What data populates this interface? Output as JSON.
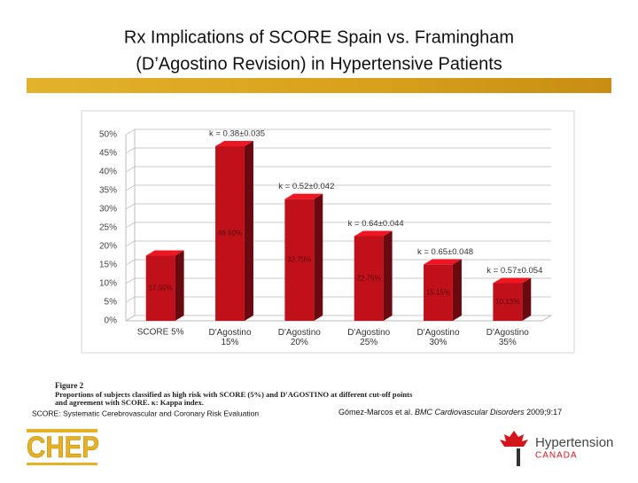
{
  "slide_title": [
    "Rx Implications of SCORE Spain vs. Framingham",
    "(D’Agostino Revision) in Hypertensive Patients"
  ],
  "chart_data": {
    "type": "bar",
    "categories": [
      "SCORE 5%",
      "D'Agostino 15%",
      "D'Agostino 20%",
      "D'Agostino 25%",
      "D'Agostino 30%",
      "D'Agostino 35%"
    ],
    "values": [
      17.5,
      46.9,
      32.7,
      22.75,
      15.15,
      10.13
    ],
    "value_labels": [
      "17.50%",
      "46.90%",
      "32.70%",
      "22.75%",
      "15.15%",
      "10.13%"
    ],
    "annotations": [
      "k = 0.38±0.035",
      "k = 0.52±0.042",
      "k = 0.64±0.044",
      "k = 0.65±0.048",
      "k = 0.57±0.054"
    ],
    "color": "#c0111b",
    "ylim": [
      0,
      50
    ],
    "yticks": [
      {
        "value": 0,
        "label": "0%"
      },
      {
        "value": 5,
        "label": "5%"
      },
      {
        "value": 10,
        "label": "10%"
      },
      {
        "value": 15,
        "label": "15%"
      },
      {
        "value": 20,
        "label": "20%"
      },
      {
        "value": 25,
        "label": "25%"
      },
      {
        "value": 30,
        "label": "30%"
      },
      {
        "value": 35,
        "label": "35%"
      },
      {
        "value": 40,
        "label": "40%"
      },
      {
        "value": 45,
        "label": "45%"
      },
      {
        "value": 50,
        "label": "50%"
      }
    ],
    "grid": true
  },
  "figure_caption": {
    "label": "Figure 2",
    "text": [
      "Proportions of subjects classified as high risk with SCORE (5%) and D'AGOSTINO at different cut-off points",
      "and agreement with SCORE. κ: Kappa index."
    ]
  },
  "footnote_left": "SCORE: Systematic Cerebrovascular and Coronary Risk Evaluation",
  "footnote_right": {
    "authors": "Gómez-Marcos et al. ",
    "journal": "BMC Cardiovascular Disorders",
    "citation": " 2009;9:17"
  },
  "logo_left": "CHEP",
  "logo_right": [
    "Hypertension",
    "CANADA"
  ]
}
